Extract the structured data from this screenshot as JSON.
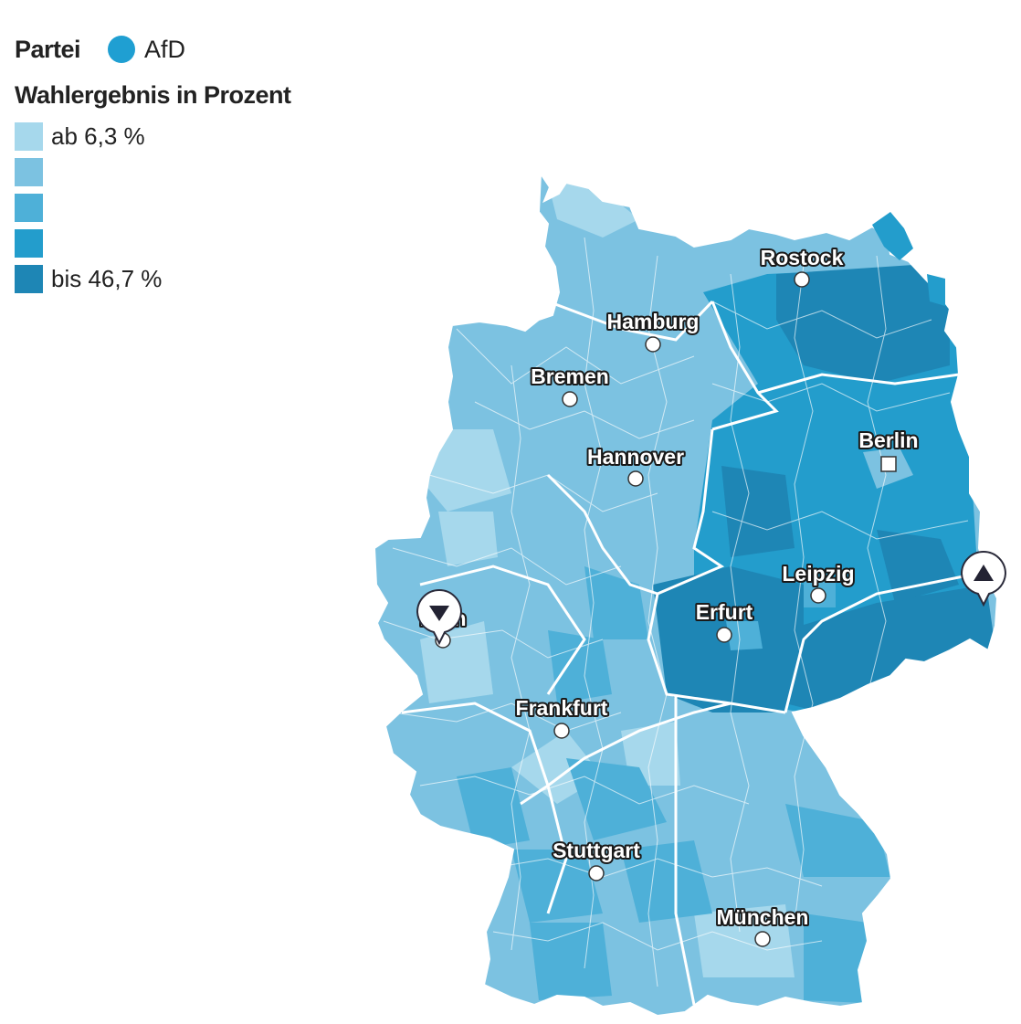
{
  "legend": {
    "party_title": "Partei",
    "party_name": "AfD",
    "party_color": "#1f9fd2",
    "result_title": "Wahlergebnis in Prozent",
    "scale": [
      {
        "label": "ab 6,3 %",
        "color": "#a6d8ec"
      },
      {
        "label": "",
        "color": "#7cc2e1"
      },
      {
        "label": "",
        "color": "#4eb0d8"
      },
      {
        "label": "",
        "color": "#239dcc"
      },
      {
        "label": "bis 46,7 %",
        "color": "#1e86b5"
      }
    ]
  },
  "cities": [
    {
      "name": "Rostock",
      "marker": "circle"
    },
    {
      "name": "Hamburg",
      "marker": "circle"
    },
    {
      "name": "Bremen",
      "marker": "circle"
    },
    {
      "name": "Berlin",
      "marker": "square"
    },
    {
      "name": "Hannover",
      "marker": "circle"
    },
    {
      "name": "Leipzig",
      "marker": "circle"
    },
    {
      "name": "Erfurt",
      "marker": "circle"
    },
    {
      "name": "Frankfurt",
      "marker": "circle"
    },
    {
      "name": "Stuttgart",
      "marker": "circle"
    },
    {
      "name": "München",
      "marker": "circle"
    },
    {
      "name": "Köln",
      "marker": "circle"
    }
  ],
  "pins": [
    {
      "type": "min",
      "icon": "down-triangle-icon"
    },
    {
      "type": "max",
      "icon": "up-triangle-icon"
    }
  ]
}
